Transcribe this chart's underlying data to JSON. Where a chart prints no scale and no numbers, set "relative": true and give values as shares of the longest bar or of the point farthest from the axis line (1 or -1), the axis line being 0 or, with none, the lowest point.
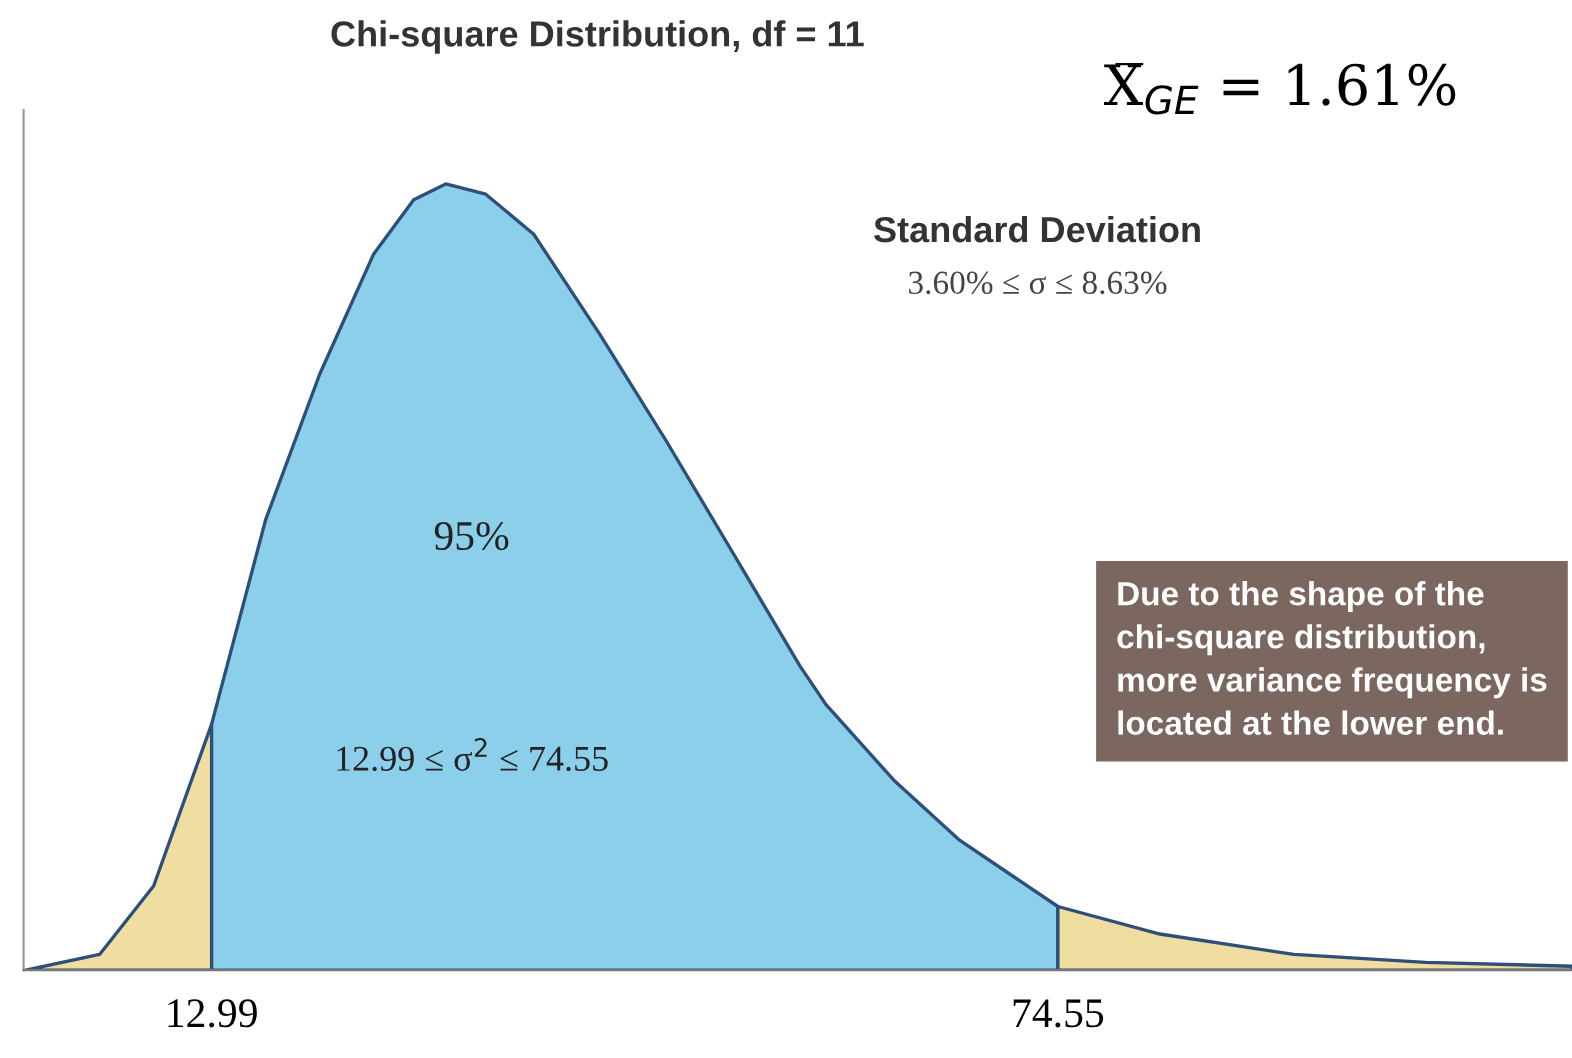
{
  "chart_data": {
    "type": "area",
    "title": "Chi-square Distribution, df = 11",
    "relative": true,
    "xlim": [
      -0.69,
      111.95
    ],
    "xticks": [
      12.99,
      74.55
    ],
    "grid": false,
    "legend": false,
    "series": [
      {
        "color": "#f0dea0",
        "x": [
          -0.54,
          4.84,
          8.77,
          12.99
        ],
        "values": [
          0,
          0.02,
          0.107,
          0.313
        ]
      },
      {
        "color": "#8ccfeb",
        "x": [
          12.99,
          16.92,
          20.85,
          24.78,
          27.69,
          30.02,
          32.93,
          36.42,
          41.22,
          46.03,
          50.97,
          55.78,
          57.67,
          62.6,
          67.42,
          74.55
        ],
        "values": [
          0.313,
          0.573,
          0.758,
          0.911,
          0.98,
          1.0,
          0.987,
          0.936,
          0.809,
          0.674,
          0.529,
          0.387,
          0.338,
          0.242,
          0.165,
          0.081
        ]
      },
      {
        "color": "#f0dea0",
        "x": [
          74.55,
          81.97,
          91.72,
          101.3,
          111.95
        ],
        "values": [
          0.081,
          0.046,
          0.02,
          0.01,
          0.005
        ]
      }
    ],
    "annotations": [
      "X̅$_{GE}$ = 1.61%",
      "Standard Deviation",
      "3.60% ≤ σ ≤ 8.63%",
      "95%",
      "12.99 ≤ σ$^{2}$ ≤ 74.55",
      "Due to the shape of the\nchi-square distribution,\nmore variance frequency is\nlocated at the lower end."
    ]
  }
}
